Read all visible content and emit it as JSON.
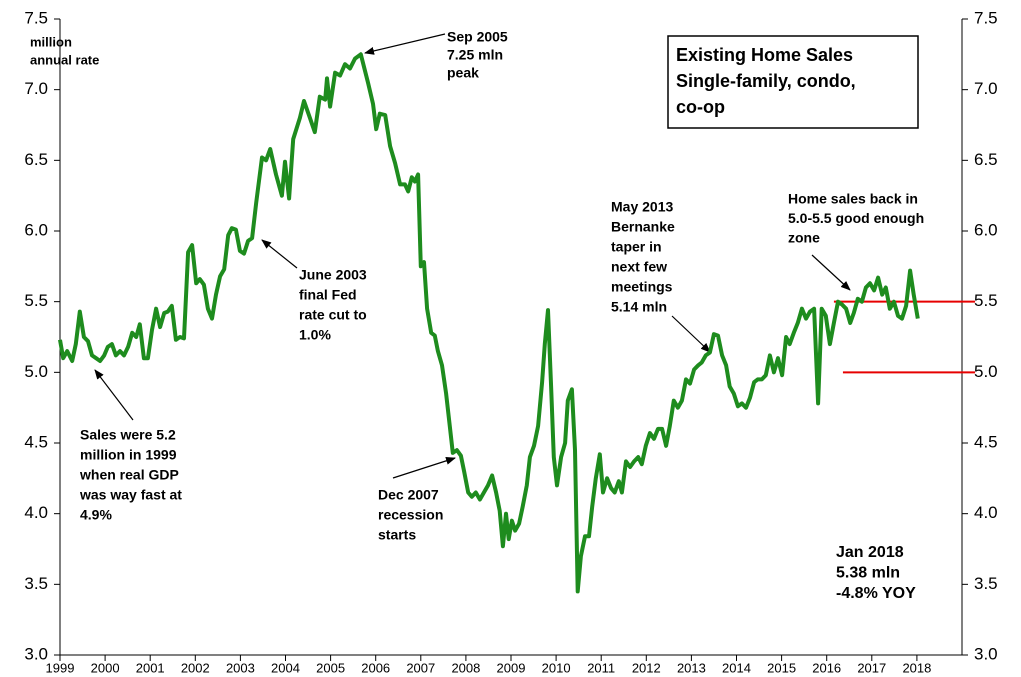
{
  "chart_data": {
    "type": "line",
    "title": [
      "Existing Home Sales",
      "Single-family, condo,",
      "co-op"
    ],
    "y_label": [
      "million",
      "annual rate"
    ],
    "xlim": [
      1999,
      2019
    ],
    "xticks": [
      1999,
      2000,
      2001,
      2002,
      2003,
      2004,
      2005,
      2006,
      2007,
      2008,
      2009,
      2010,
      2011,
      2012,
      2013,
      2014,
      2015,
      2016,
      2017,
      2018
    ],
    "ylim": [
      3,
      7.5
    ],
    "yticks": [
      {
        "value": 3,
        "label": "3.0"
      },
      3.5,
      {
        "value": 4,
        "label": "4.0"
      },
      4.5,
      {
        "value": 5,
        "label": "5.0"
      },
      5.5,
      {
        "value": 6,
        "label": "6.0"
      },
      6.5,
      {
        "value": 7,
        "label": "7.0"
      },
      7.5
    ],
    "y2lim": [
      3,
      7.5
    ],
    "y2ticks": [
      {
        "value": 3,
        "label": "3.0"
      },
      3.5,
      {
        "value": 4,
        "label": "4.0"
      },
      4.5,
      {
        "value": 5,
        "label": "5.0"
      },
      5.5,
      {
        "value": 6,
        "label": "6.0"
      },
      6.5,
      {
        "value": 7,
        "label": "7.0"
      },
      7.5
    ],
    "series": [
      {
        "color": "#1e8c1e",
        "x": [
          1999.0,
          1999.07,
          1999.16,
          1999.27,
          1999.35,
          1999.44,
          1999.53,
          1999.62,
          1999.71,
          1999.8,
          1999.89,
          1999.98,
          2000.06,
          2000.15,
          2000.24,
          2000.33,
          2000.42,
          2000.51,
          2000.6,
          2000.69,
          2000.77,
          2000.86,
          2000.95,
          2001.04,
          2001.13,
          2001.22,
          2001.31,
          2001.39,
          2001.48,
          2001.57,
          2001.66,
          2001.75,
          2001.84,
          2001.93,
          2002.02,
          2002.1,
          2002.19,
          2002.28,
          2002.37,
          2002.46,
          2002.55,
          2002.64,
          2002.73,
          2002.81,
          2002.9,
          2002.99,
          2003.08,
          2003.17,
          2003.26,
          2003.35,
          2003.48,
          2003.57,
          2003.66,
          2003.79,
          2003.92,
          2003.99,
          2004.08,
          2004.17,
          2004.32,
          2004.41,
          2004.54,
          2004.65,
          2004.76,
          2004.88,
          2004.92,
          2004.99,
          2005.1,
          2005.21,
          2005.32,
          2005.43,
          2005.54,
          2005.67,
          2005.83,
          2005.94,
          2006.01,
          2006.09,
          2006.21,
          2006.32,
          2006.43,
          2006.54,
          2006.65,
          2006.72,
          2006.8,
          2006.87,
          2006.94,
          2007.0,
          2007.07,
          2007.14,
          2007.23,
          2007.31,
          2007.38,
          2007.47,
          2007.56,
          2007.65,
          2007.71,
          2007.8,
          2007.89,
          2007.96,
          2008.05,
          2008.13,
          2008.22,
          2008.31,
          2008.4,
          2008.49,
          2008.58,
          2008.67,
          2008.75,
          2008.82,
          2008.89,
          2008.95,
          2009.02,
          2009.09,
          2009.18,
          2009.26,
          2009.35,
          2009.42,
          2009.51,
          2009.6,
          2009.69,
          2009.75,
          2009.82,
          2009.89,
          2009.95,
          2010.02,
          2010.11,
          2010.2,
          2010.26,
          2010.35,
          2010.42,
          2010.48,
          2010.55,
          2010.64,
          2010.73,
          2010.8,
          2010.88,
          2010.97,
          2011.04,
          2011.13,
          2011.22,
          2011.3,
          2011.39,
          2011.46,
          2011.55,
          2011.64,
          2011.73,
          2011.82,
          2011.9,
          2011.99,
          2012.08,
          2012.17,
          2012.26,
          2012.35,
          2012.44,
          2012.52,
          2012.61,
          2012.7,
          2012.79,
          2012.88,
          2012.97,
          2013.06,
          2013.15,
          2013.23,
          2013.32,
          2013.41,
          2013.5,
          2013.59,
          2013.68,
          2013.77,
          2013.85,
          2013.94,
          2014.03,
          2014.12,
          2014.21,
          2014.3,
          2014.39,
          2014.47,
          2014.56,
          2014.65,
          2014.74,
          2014.83,
          2014.92,
          2015.01,
          2015.1,
          2015.18,
          2015.27,
          2015.36,
          2015.45,
          2015.54,
          2015.63,
          2015.72,
          2015.81,
          2015.89,
          2015.98,
          2016.07,
          2016.16,
          2016.25,
          2016.34,
          2016.43,
          2016.52,
          2016.6,
          2016.69,
          2016.78,
          2016.87,
          2016.96,
          2017.05,
          2017.14,
          2017.23,
          2017.31,
          2017.4,
          2017.49,
          2017.58,
          2017.67,
          2017.76,
          2017.85,
          2017.93,
          2018.02
        ],
        "values": [
          5.23,
          5.1,
          5.15,
          5.08,
          5.2,
          5.43,
          5.25,
          5.22,
          5.12,
          5.1,
          5.08,
          5.12,
          5.18,
          5.2,
          5.12,
          5.15,
          5.12,
          5.18,
          5.28,
          5.25,
          5.34,
          5.1,
          5.1,
          5.3,
          5.45,
          5.32,
          5.42,
          5.43,
          5.47,
          5.23,
          5.25,
          5.24,
          5.85,
          5.9,
          5.63,
          5.66,
          5.62,
          5.45,
          5.38,
          5.55,
          5.68,
          5.73,
          5.97,
          6.02,
          6.01,
          5.86,
          5.84,
          5.93,
          5.95,
          6.2,
          6.52,
          6.5,
          6.58,
          6.4,
          6.25,
          6.49,
          6.23,
          6.65,
          6.8,
          6.92,
          6.8,
          6.7,
          6.95,
          6.93,
          7.08,
          6.88,
          7.12,
          7.1,
          7.18,
          7.15,
          7.22,
          7.25,
          7.05,
          6.9,
          6.72,
          6.83,
          6.82,
          6.6,
          6.48,
          6.33,
          6.33,
          6.28,
          6.38,
          6.35,
          6.4,
          5.75,
          5.78,
          5.45,
          5.28,
          5.26,
          5.15,
          5.05,
          4.85,
          4.6,
          4.43,
          4.45,
          4.41,
          4.3,
          4.15,
          4.12,
          4.15,
          4.1,
          4.15,
          4.2,
          4.27,
          4.15,
          4.02,
          3.77,
          4.0,
          3.82,
          3.95,
          3.88,
          3.93,
          4.05,
          4.2,
          4.4,
          4.48,
          4.62,
          4.93,
          5.2,
          5.44,
          4.9,
          4.4,
          4.2,
          4.4,
          4.5,
          4.8,
          4.88,
          4.45,
          3.45,
          3.7,
          3.84,
          3.84,
          4.05,
          4.25,
          4.42,
          4.15,
          4.25,
          4.18,
          4.15,
          4.23,
          4.15,
          4.37,
          4.33,
          4.37,
          4.4,
          4.35,
          4.48,
          4.57,
          4.53,
          4.6,
          4.6,
          4.48,
          4.62,
          4.8,
          4.75,
          4.8,
          4.95,
          4.92,
          5.02,
          5.05,
          5.07,
          5.12,
          5.14,
          5.27,
          5.26,
          5.12,
          5.05,
          4.9,
          4.85,
          4.76,
          4.78,
          4.75,
          4.82,
          4.93,
          4.95,
          4.95,
          4.98,
          5.12,
          5.0,
          5.1,
          4.98,
          5.25,
          5.2,
          5.28,
          5.35,
          5.45,
          5.38,
          5.43,
          5.45,
          4.78,
          5.45,
          5.4,
          5.2,
          5.35,
          5.5,
          5.48,
          5.45,
          5.35,
          5.42,
          5.52,
          5.5,
          5.6,
          5.63,
          5.58,
          5.67,
          5.55,
          5.6,
          5.45,
          5.5,
          5.4,
          5.38,
          5.47,
          5.72,
          5.55,
          5.38
        ]
      }
    ],
    "hlines": [
      {
        "y": 5.5,
        "x": [
          2016.16,
          2019.29
        ],
        "color": "#e60000"
      },
      {
        "y": 5.0,
        "x": [
          2016.36,
          2019.29
        ],
        "color": "#e60000"
      }
    ],
    "annotations": [
      [
        "Sep 2005",
        "7.25 mln",
        "peak"
      ],
      [
        "June 2003",
        "final Fed",
        "rate cut to",
        "1.0%"
      ],
      [
        "Sales were 5.2",
        "million in 1999",
        "when real GDP",
        "was way fast at",
        "4.9%"
      ],
      [
        "Dec 2007",
        "recession",
        "starts"
      ],
      [
        "May 2013",
        "Bernanke",
        "taper in",
        "next few",
        "meetings",
        "5.14 mln"
      ],
      [
        "Home sales back in",
        "5.0-5.5 good enough",
        "zone"
      ],
      [
        "Jan 2018",
        "5.38 mln",
        "-4.8% YOY"
      ]
    ]
  }
}
